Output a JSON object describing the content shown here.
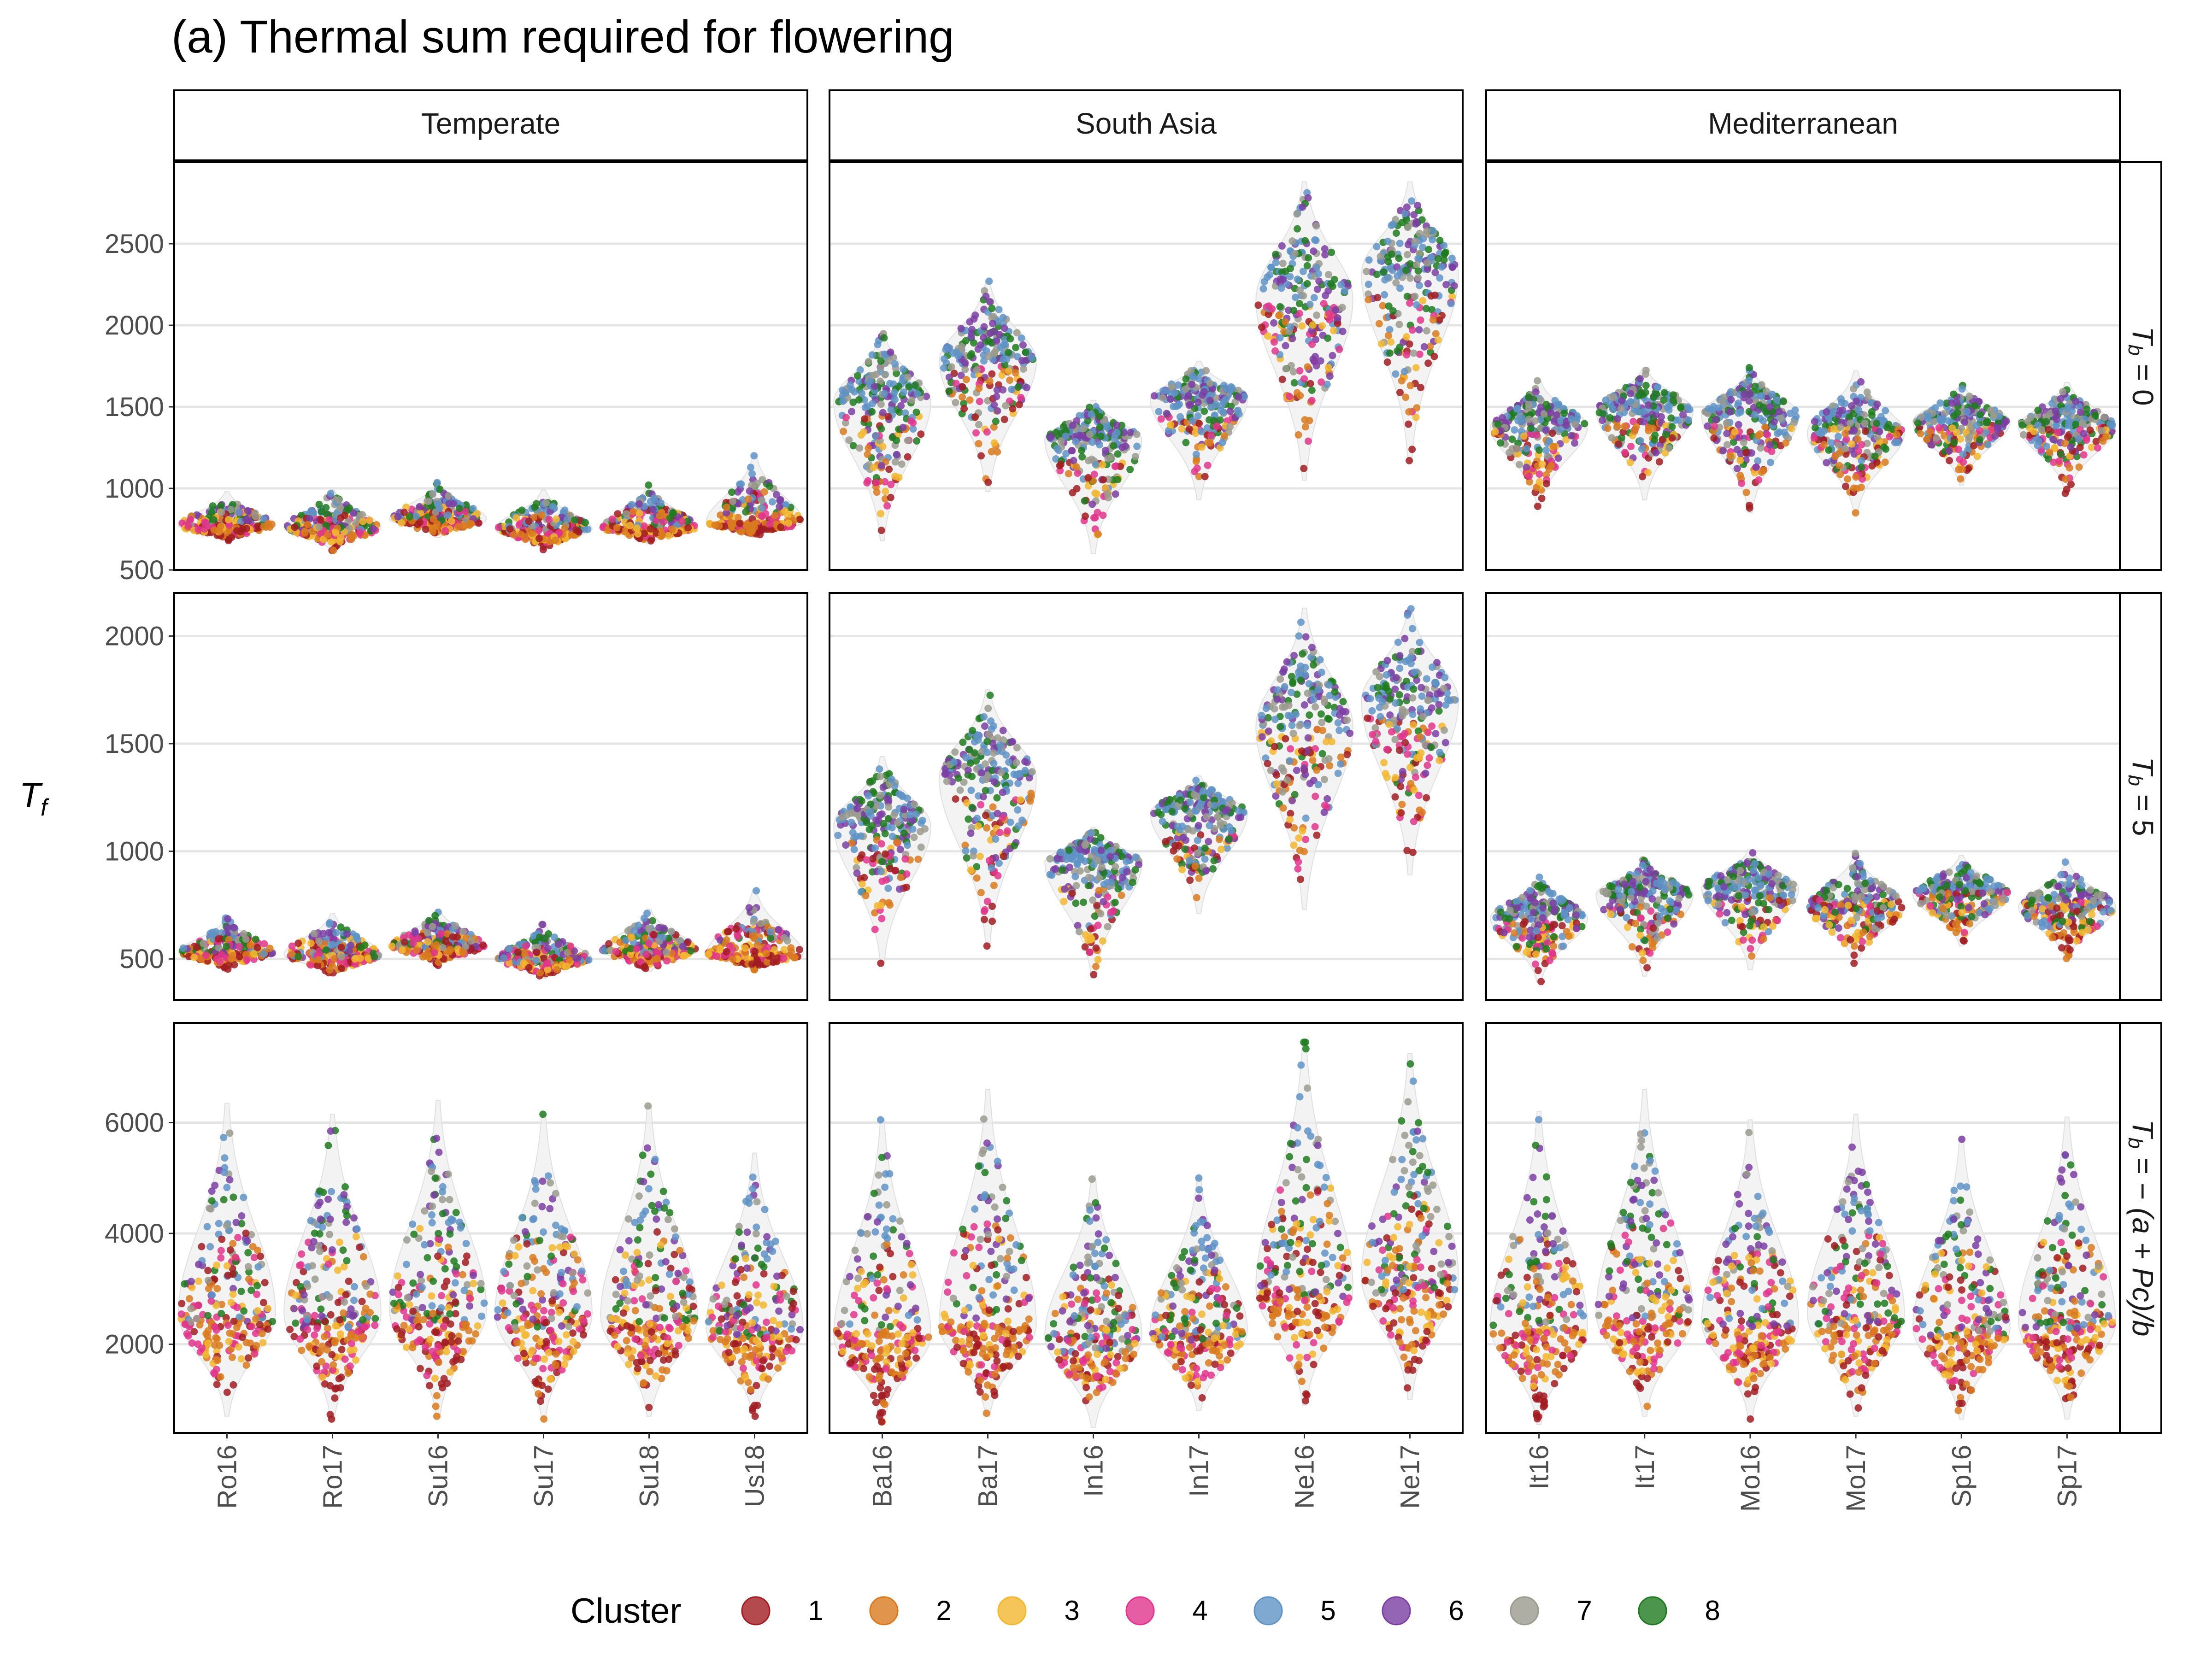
{
  "chart_data": {
    "type": "scatter",
    "title": "(a) Thermal sum required for flowering",
    "ylabel": "T",
    "ylabel_sub": "f",
    "legend_title": "Cluster",
    "legend_position": "bottom",
    "grid": "horizontal major",
    "columns": [
      {
        "name": "Temperate",
        "categories": [
          "Ro16",
          "Ro17",
          "Su16",
          "Su17",
          "Su18",
          "Us18"
        ]
      },
      {
        "name": "South Asia",
        "categories": [
          "Ba16",
          "Ba17",
          "In16",
          "In17",
          "Ne16",
          "Ne17"
        ]
      },
      {
        "name": "Mediterranean",
        "categories": [
          "It16",
          "It17",
          "Mo16",
          "Mo17",
          "Sp16",
          "Sp17"
        ]
      }
    ],
    "rows": [
      {
        "strip": {
          "prefix": "T",
          "sub": "b",
          "suffix": " = 0"
        },
        "ylim": [
          500,
          3000
        ],
        "yticks": [
          500,
          1000,
          1500,
          2000,
          2500
        ],
        "groups": [
          [
            {
              "center": 770,
              "min": 680,
              "max": 980
            },
            {
              "center": 760,
              "min": 620,
              "max": 990
            },
            {
              "center": 810,
              "min": 700,
              "max": 1040
            },
            {
              "center": 750,
              "min": 620,
              "max": 990
            },
            {
              "center": 760,
              "min": 660,
              "max": 1020
            },
            {
              "center": 790,
              "min": 700,
              "max": 1200
            }
          ],
          [
            {
              "center": 1530,
              "min": 680,
              "max": 1960
            },
            {
              "center": 1780,
              "min": 980,
              "max": 2270
            },
            {
              "center": 1300,
              "min": 600,
              "max": 1540
            },
            {
              "center": 1550,
              "min": 930,
              "max": 1780
            },
            {
              "center": 2160,
              "min": 1050,
              "max": 2880
            },
            {
              "center": 2320,
              "min": 1170,
              "max": 2880
            }
          ],
          [
            {
              "center": 1380,
              "min": 890,
              "max": 1660
            },
            {
              "center": 1480,
              "min": 930,
              "max": 1740
            },
            {
              "center": 1450,
              "min": 850,
              "max": 1740
            },
            {
              "center": 1340,
              "min": 850,
              "max": 1720
            },
            {
              "center": 1410,
              "min": 1020,
              "max": 1640
            },
            {
              "center": 1380,
              "min": 970,
              "max": 1650
            }
          ]
        ]
      },
      {
        "strip": {
          "prefix": "T",
          "sub": "b",
          "suffix": " = 5"
        },
        "ylim": [
          310,
          2200
        ],
        "yticks": [
          500,
          1000,
          1500,
          2000
        ],
        "groups": [
          [
            {
              "center": 530,
              "min": 450,
              "max": 690
            },
            {
              "center": 520,
              "min": 420,
              "max": 710
            },
            {
              "center": 560,
              "min": 470,
              "max": 730
            },
            {
              "center": 500,
              "min": 410,
              "max": 660
            },
            {
              "center": 540,
              "min": 440,
              "max": 730
            },
            {
              "center": 520,
              "min": 450,
              "max": 820
            }
          ],
          [
            {
              "center": 1120,
              "min": 480,
              "max": 1440
            },
            {
              "center": 1340,
              "min": 560,
              "max": 1750
            },
            {
              "center": 950,
              "min": 410,
              "max": 1110
            },
            {
              "center": 1180,
              "min": 710,
              "max": 1350
            },
            {
              "center": 1580,
              "min": 730,
              "max": 2130
            },
            {
              "center": 1700,
              "min": 890,
              "max": 2130
            }
          ],
          [
            {
              "center": 690,
              "min": 390,
              "max": 880
            },
            {
              "center": 800,
              "min": 420,
              "max": 960
            },
            {
              "center": 830,
              "min": 450,
              "max": 1010
            },
            {
              "center": 740,
              "min": 480,
              "max": 990
            },
            {
              "center": 800,
              "min": 560,
              "max": 980
            },
            {
              "center": 740,
              "min": 500,
              "max": 950
            }
          ]
        ]
      },
      {
        "strip": {
          "prefix": "T",
          "sub": "b",
          "suffix": " = − (a + Pc)/b",
          "italic_suffix": true
        },
        "ylim": [
          400,
          7800
        ],
        "yticks": [
          2000,
          4000,
          6000
        ],
        "groups": [
          [
            {
              "center": 2550,
              "min": 700,
              "max": 6350
            },
            {
              "center": 2550,
              "min": 650,
              "max": 6150
            },
            {
              "center": 2600,
              "min": 700,
              "max": 6400
            },
            {
              "center": 2550,
              "min": 650,
              "max": 6150
            },
            {
              "center": 2500,
              "min": 700,
              "max": 6300
            },
            {
              "center": 2300,
              "min": 700,
              "max": 5450
            }
          ],
          [
            {
              "center": 2150,
              "min": 600,
              "max": 6050
            },
            {
              "center": 2350,
              "min": 700,
              "max": 6600
            },
            {
              "center": 2150,
              "min": 500,
              "max": 5050
            },
            {
              "center": 2250,
              "min": 800,
              "max": 5000
            },
            {
              "center": 3000,
              "min": 900,
              "max": 7450
            },
            {
              "center": 3200,
              "min": 1000,
              "max": 7250
            }
          ],
          [
            {
              "center": 2300,
              "min": 550,
              "max": 6200
            },
            {
              "center": 2550,
              "min": 700,
              "max": 6600
            },
            {
              "center": 2400,
              "min": 650,
              "max": 6050
            },
            {
              "center": 2550,
              "min": 700,
              "max": 6150
            },
            {
              "center": 2300,
              "min": 650,
              "max": 5700
            },
            {
              "center": 2400,
              "min": 650,
              "max": 6100
            }
          ]
        ]
      }
    ],
    "legend": [
      {
        "label": "1",
        "color": "#a11c22"
      },
      {
        "label": "2",
        "color": "#d97a1f"
      },
      {
        "label": "3",
        "color": "#f2b630"
      },
      {
        "label": "4",
        "color": "#e0358c"
      },
      {
        "label": "5",
        "color": "#5f93c6"
      },
      {
        "label": "6",
        "color": "#7b3ea3"
      },
      {
        "label": "7",
        "color": "#9b9a8e"
      },
      {
        "label": "8",
        "color": "#1f7a1f"
      }
    ]
  }
}
